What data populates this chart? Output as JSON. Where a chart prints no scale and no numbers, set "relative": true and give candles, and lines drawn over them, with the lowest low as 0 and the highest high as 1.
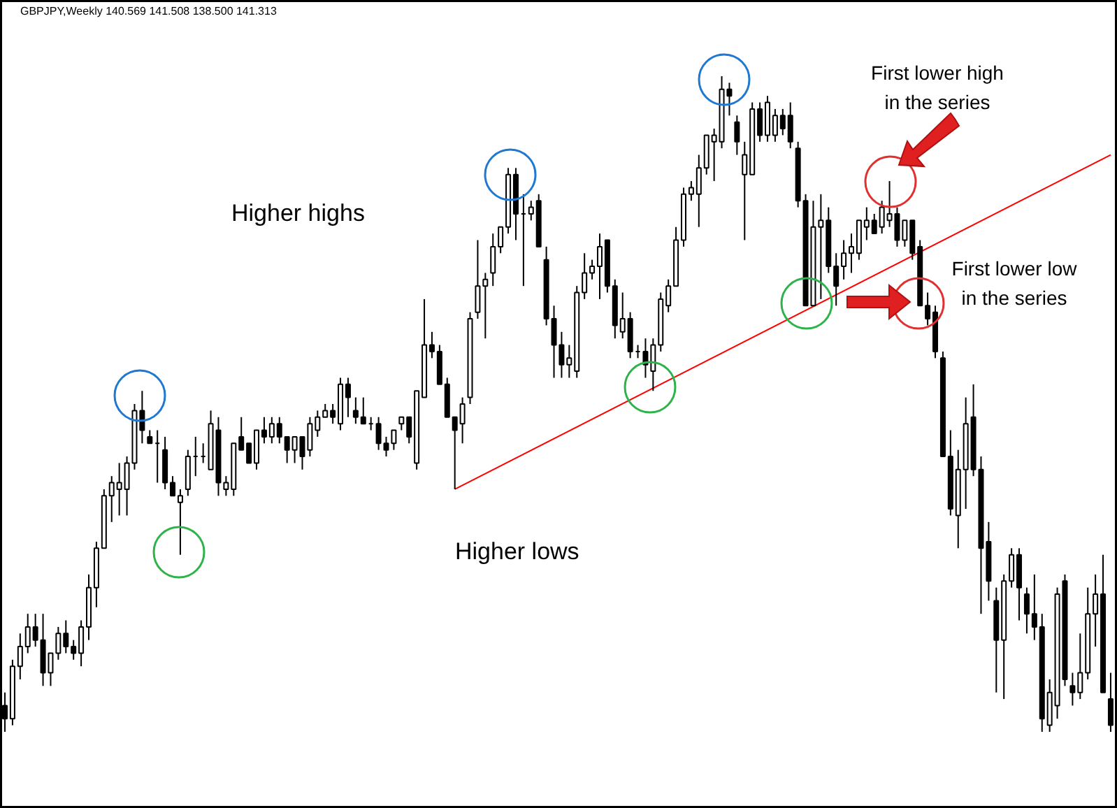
{
  "chart_data": {
    "type": "candlestick",
    "title": "GBPJPY,Weekly  140.569 141.508 138.500 141.313",
    "relative": true,
    "categories": [
      null,
      null,
      null,
      null,
      null,
      null,
      null,
      null,
      null,
      null,
      null,
      null,
      null,
      null,
      null,
      null,
      null,
      null,
      null,
      null,
      null,
      null,
      null,
      null,
      null,
      null,
      null,
      null,
      null,
      null,
      null,
      null,
      null,
      null,
      null,
      null,
      null,
      null,
      null,
      null,
      null,
      null,
      null,
      null,
      null,
      null,
      null,
      null,
      null,
      null,
      null,
      null,
      null,
      null,
      null,
      null,
      null,
      null,
      null,
      null,
      null,
      null,
      null,
      null,
      null,
      null,
      null,
      null,
      null,
      null,
      null,
      null,
      null,
      null,
      null,
      null,
      null,
      null,
      null,
      null,
      null,
      null,
      null,
      null,
      null,
      null,
      null,
      null,
      null,
      null,
      null,
      null,
      null,
      null,
      null,
      null,
      null,
      null,
      null,
      null,
      null,
      null,
      null,
      null,
      null,
      null,
      null,
      null,
      null,
      null,
      null,
      null,
      null,
      null,
      null,
      null,
      null,
      null,
      null,
      null,
      null,
      null,
      null,
      null,
      null,
      null,
      null,
      null,
      null,
      null,
      null,
      null,
      null,
      null,
      null,
      null,
      null,
      null,
      null,
      null,
      null,
      null,
      null,
      null,
      null,
      null
    ],
    "ohlc": [
      [
        0.04,
        0.06,
        0.0,
        0.02
      ],
      [
        0.02,
        0.11,
        0.01,
        0.1
      ],
      [
        0.1,
        0.15,
        0.08,
        0.13
      ],
      [
        0.13,
        0.18,
        0.12,
        0.16
      ],
      [
        0.16,
        0.18,
        0.13,
        0.14
      ],
      [
        0.14,
        0.18,
        0.07,
        0.09
      ],
      [
        0.09,
        0.12,
        0.07,
        0.12
      ],
      [
        0.12,
        0.16,
        0.11,
        0.15
      ],
      [
        0.15,
        0.17,
        0.12,
        0.13
      ],
      [
        0.13,
        0.14,
        0.11,
        0.12
      ],
      [
        0.12,
        0.17,
        0.1,
        0.16
      ],
      [
        0.16,
        0.24,
        0.14,
        0.22
      ],
      [
        0.22,
        0.29,
        0.19,
        0.28
      ],
      [
        0.28,
        0.37,
        0.28,
        0.36
      ],
      [
        0.36,
        0.39,
        0.32,
        0.38
      ],
      [
        0.37,
        0.41,
        0.33,
        0.38
      ],
      [
        0.37,
        0.42,
        0.33,
        0.41
      ],
      [
        0.41,
        0.5,
        0.4,
        0.49
      ],
      [
        0.49,
        0.52,
        0.44,
        0.46
      ],
      [
        0.45,
        0.46,
        0.44,
        0.44
      ],
      [
        0.44,
        0.46,
        0.38,
        0.44
      ],
      [
        0.43,
        0.45,
        0.37,
        0.38
      ],
      [
        0.38,
        0.39,
        0.36,
        0.36
      ],
      [
        0.35,
        0.37,
        0.27,
        0.36
      ],
      [
        0.37,
        0.43,
        0.36,
        0.42
      ],
      [
        0.42,
        0.45,
        0.39,
        0.42
      ],
      [
        0.42,
        0.44,
        0.41,
        0.42
      ],
      [
        0.4,
        0.49,
        0.4,
        0.47
      ],
      [
        0.46,
        0.48,
        0.36,
        0.38
      ],
      [
        0.37,
        0.39,
        0.36,
        0.38
      ],
      [
        0.37,
        0.44,
        0.36,
        0.44
      ],
      [
        0.45,
        0.48,
        0.43,
        0.43
      ],
      [
        0.44,
        0.44,
        0.41,
        0.41
      ],
      [
        0.41,
        0.46,
        0.4,
        0.46
      ],
      [
        0.46,
        0.48,
        0.44,
        0.45
      ],
      [
        0.45,
        0.48,
        0.44,
        0.47
      ],
      [
        0.47,
        0.48,
        0.44,
        0.45
      ],
      [
        0.45,
        0.45,
        0.41,
        0.43
      ],
      [
        0.43,
        0.45,
        0.41,
        0.45
      ],
      [
        0.45,
        0.45,
        0.4,
        0.42
      ],
      [
        0.43,
        0.48,
        0.42,
        0.47
      ],
      [
        0.46,
        0.49,
        0.45,
        0.48
      ],
      [
        0.48,
        0.5,
        0.48,
        0.49
      ],
      [
        0.49,
        0.5,
        0.47,
        0.48
      ],
      [
        0.47,
        0.54,
        0.46,
        0.53
      ],
      [
        0.53,
        0.54,
        0.48,
        0.51
      ],
      [
        0.49,
        0.51,
        0.47,
        0.48
      ],
      [
        0.48,
        0.51,
        0.47,
        0.47
      ],
      [
        0.47,
        0.48,
        0.46,
        0.47
      ],
      [
        0.47,
        0.48,
        0.43,
        0.44
      ],
      [
        0.44,
        0.45,
        0.42,
        0.43
      ],
      [
        0.44,
        0.46,
        0.43,
        0.46
      ],
      [
        0.47,
        0.48,
        0.46,
        0.48
      ],
      [
        0.48,
        0.48,
        0.44,
        0.45
      ],
      [
        0.41,
        0.52,
        0.4,
        0.52
      ],
      [
        0.51,
        0.66,
        0.51,
        0.59
      ],
      [
        0.59,
        0.61,
        0.57,
        0.58
      ],
      [
        0.58,
        0.59,
        0.53,
        0.53
      ],
      [
        0.53,
        0.54,
        0.48,
        0.48
      ],
      [
        0.48,
        0.48,
        0.37,
        0.46
      ],
      [
        0.47,
        0.51,
        0.44,
        0.5
      ],
      [
        0.51,
        0.64,
        0.5,
        0.63
      ],
      [
        0.64,
        0.75,
        0.63,
        0.68
      ],
      [
        0.68,
        0.7,
        0.6,
        0.69
      ],
      [
        0.7,
        0.76,
        0.68,
        0.74
      ],
      [
        0.74,
        0.77,
        0.73,
        0.77
      ],
      [
        0.77,
        0.86,
        0.76,
        0.85
      ],
      [
        0.85,
        0.86,
        0.75,
        0.79
      ],
      [
        0.79,
        0.82,
        0.68,
        0.79
      ],
      [
        0.79,
        0.81,
        0.78,
        0.8
      ],
      [
        0.81,
        0.82,
        0.74,
        0.74
      ],
      [
        0.72,
        0.74,
        0.62,
        0.63
      ],
      [
        0.63,
        0.65,
        0.54,
        0.59
      ],
      [
        0.59,
        0.61,
        0.54,
        0.56
      ],
      [
        0.56,
        0.59,
        0.54,
        0.57
      ],
      [
        0.55,
        0.68,
        0.54,
        0.67
      ],
      [
        0.67,
        0.73,
        0.66,
        0.7
      ],
      [
        0.7,
        0.72,
        0.69,
        0.71
      ],
      [
        0.71,
        0.76,
        0.66,
        0.74
      ],
      [
        0.75,
        0.75,
        0.67,
        0.68
      ],
      [
        0.68,
        0.69,
        0.6,
        0.62
      ],
      [
        0.61,
        0.67,
        0.6,
        0.63
      ],
      [
        0.63,
        0.64,
        0.57,
        0.58
      ],
      [
        0.58,
        0.59,
        0.57,
        0.58
      ],
      [
        0.58,
        0.6,
        0.54,
        0.56
      ],
      [
        0.55,
        0.6,
        0.52,
        0.59
      ],
      [
        0.59,
        0.67,
        0.58,
        0.66
      ],
      [
        0.65,
        0.69,
        0.64,
        0.68
      ],
      [
        0.68,
        0.77,
        0.68,
        0.75
      ],
      [
        0.75,
        0.83,
        0.74,
        0.82
      ],
      [
        0.82,
        0.84,
        0.81,
        0.83
      ],
      [
        0.82,
        0.88,
        0.77,
        0.86
      ],
      [
        0.86,
        0.91,
        0.85,
        0.91
      ],
      [
        0.9,
        0.92,
        0.84,
        0.91
      ],
      [
        0.9,
        1.0,
        0.89,
        0.98
      ],
      [
        0.98,
        0.99,
        0.94,
        0.97
      ],
      [
        0.93,
        0.94,
        0.88,
        0.9
      ],
      [
        0.85,
        0.9,
        0.75,
        0.88
      ],
      [
        0.85,
        0.96,
        0.85,
        0.95
      ],
      [
        0.95,
        0.96,
        0.9,
        0.91
      ],
      [
        0.91,
        0.97,
        0.9,
        0.96
      ],
      [
        0.91,
        0.95,
        0.9,
        0.94
      ],
      [
        0.94,
        0.95,
        0.91,
        0.92
      ],
      [
        0.94,
        0.96,
        0.89,
        0.9
      ],
      [
        0.89,
        0.9,
        0.8,
        0.81
      ],
      [
        0.81,
        0.82,
        0.65,
        0.65
      ],
      [
        0.65,
        0.81,
        0.65,
        0.77
      ],
      [
        0.77,
        0.82,
        0.66,
        0.78
      ],
      [
        0.78,
        0.8,
        0.7,
        0.71
      ],
      [
        0.71,
        0.73,
        0.65,
        0.68
      ],
      [
        0.71,
        0.75,
        0.69,
        0.73
      ],
      [
        0.73,
        0.76,
        0.7,
        0.74
      ],
      [
        0.73,
        0.78,
        0.72,
        0.78
      ],
      [
        0.77,
        0.8,
        0.75,
        0.78
      ],
      [
        0.78,
        0.79,
        0.76,
        0.76
      ],
      [
        0.77,
        0.81,
        0.76,
        0.8
      ],
      [
        0.78,
        0.84,
        0.77,
        0.79
      ],
      [
        0.79,
        0.8,
        0.74,
        0.75
      ],
      [
        0.75,
        0.78,
        0.74,
        0.78
      ],
      [
        0.78,
        0.78,
        0.72,
        0.73
      ],
      [
        0.74,
        0.75,
        0.65,
        0.65
      ],
      [
        0.65,
        0.67,
        0.62,
        0.63
      ],
      [
        0.64,
        0.65,
        0.57,
        0.58
      ],
      [
        0.57,
        0.58,
        0.42,
        0.42
      ],
      [
        0.42,
        0.46,
        0.33,
        0.34
      ],
      [
        0.33,
        0.43,
        0.28,
        0.4
      ],
      [
        0.4,
        0.51,
        0.34,
        0.47
      ],
      [
        0.48,
        0.53,
        0.39,
        0.4
      ],
      [
        0.4,
        0.42,
        0.18,
        0.28
      ],
      [
        0.29,
        0.32,
        0.2,
        0.23
      ],
      [
        0.2,
        0.22,
        0.06,
        0.14
      ],
      [
        0.14,
        0.24,
        0.05,
        0.23
      ],
      [
        0.23,
        0.28,
        0.22,
        0.27
      ],
      [
        0.27,
        0.28,
        0.17,
        0.22
      ],
      [
        0.21,
        0.22,
        0.15,
        0.18
      ],
      [
        0.18,
        0.24,
        0.14,
        0.16
      ],
      [
        0.16,
        0.18,
        0.0,
        0.02
      ],
      [
        0.01,
        0.08,
        0.0,
        0.06
      ],
      [
        0.04,
        0.22,
        0.02,
        0.21
      ],
      [
        0.23,
        0.24,
        0.07,
        0.08
      ],
      [
        0.07,
        0.09,
        0.04,
        0.06
      ],
      [
        0.06,
        0.15,
        0.05,
        0.09
      ],
      [
        0.09,
        0.22,
        0.08,
        0.18
      ],
      [
        0.18,
        0.24,
        0.13,
        0.21
      ],
      [
        0.21,
        0.27,
        0.06,
        0.06
      ],
      [
        0.05,
        0.09,
        0.0,
        0.01
      ]
    ],
    "series": [
      {
        "type": "line",
        "values": [
          null,
          null,
          null,
          null,
          null,
          null,
          null,
          null,
          null,
          null,
          null,
          null,
          null,
          null,
          null,
          null,
          null,
          null,
          null,
          null,
          null,
          null,
          null,
          null,
          null,
          null,
          null,
          null,
          null,
          null,
          null,
          null,
          null,
          null,
          null,
          null,
          null,
          null,
          null,
          null,
          null,
          null,
          null,
          null,
          null,
          null,
          null,
          null,
          null,
          null,
          null,
          null,
          null,
          null,
          null,
          null,
          null,
          null,
          null,
          0.37,
          null,
          null,
          null,
          null,
          null,
          null,
          null,
          null,
          null,
          null,
          null,
          null,
          null,
          null,
          null,
          null,
          null,
          null,
          null,
          null,
          null,
          null,
          null,
          null,
          null,
          null,
          null,
          null,
          null,
          null,
          null,
          null,
          null,
          null,
          null,
          null,
          null,
          null,
          null,
          null,
          null,
          null,
          null,
          null,
          null,
          null,
          null,
          null,
          null,
          null,
          null,
          null,
          null,
          null,
          null,
          null,
          null,
          null,
          null,
          null,
          null,
          null,
          null,
          null,
          null,
          null,
          null,
          null,
          null,
          null,
          null,
          null,
          null,
          null,
          null,
          null,
          null,
          null,
          null,
          null,
          null,
          null,
          null,
          null,
          null,
          0.88
        ],
        "color": "#ff0000"
      }
    ],
    "annotations": [
      "Higher highs",
      "Higher lows",
      "First lower high in the series",
      "First lower low in the series"
    ]
  }
}
